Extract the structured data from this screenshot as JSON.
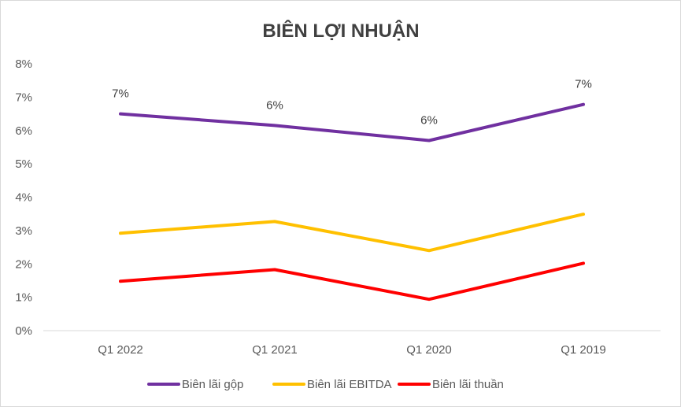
{
  "chart_data": {
    "type": "line",
    "title": "BIÊN LỢI NHUẬN",
    "xlabel": "",
    "ylabel": "",
    "categories": [
      "Q1 2022",
      "Q1 2021",
      "Q1 2020",
      "Q1 2019"
    ],
    "ylim": [
      0,
      8
    ],
    "y_ticks": [
      "0%",
      "1%",
      "2%",
      "3%",
      "4%",
      "5%",
      "6%",
      "7%",
      "8%"
    ],
    "grid": false,
    "legend_position": "bottom",
    "series": [
      {
        "name": "Biên lãi gộp",
        "color": "#7030a0",
        "values": [
          6.5,
          6.15,
          5.7,
          6.78
        ],
        "data_labels": [
          "7%",
          "6%",
          "6%",
          "7%"
        ]
      },
      {
        "name": "Biên lãi EBITDA",
        "color": "#ffc000",
        "values": [
          2.92,
          3.27,
          2.4,
          3.49
        ],
        "data_labels": null
      },
      {
        "name": "Biên lãi thuần",
        "color": "#ff0000",
        "values": [
          1.48,
          1.83,
          0.94,
          2.02
        ],
        "data_labels": null
      }
    ]
  }
}
